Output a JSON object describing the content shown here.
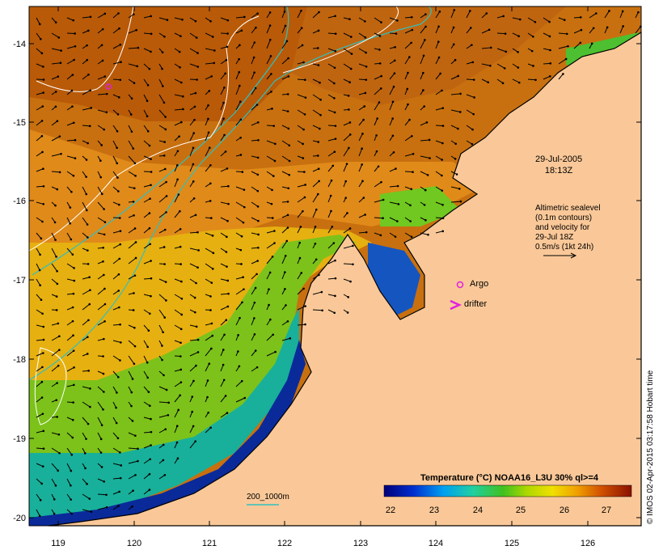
{
  "map": {
    "lat_ticks": [
      "-14",
      "-15",
      "-16",
      "-17",
      "-18",
      "-19",
      "-20"
    ],
    "lon_ticks": [
      "119",
      "120",
      "121",
      "122",
      "123",
      "124",
      "125",
      "126"
    ]
  },
  "annotation": {
    "date": "29-Jul-2005",
    "time": "18:13Z",
    "info_lines": [
      "Altimetric sealevel",
      "(0.1m contours)",
      "and velocity for",
      "29-Jul 18Z",
      "0.5m/s (1kt 24h)"
    ]
  },
  "legend": {
    "argo": "Argo",
    "drifter": "drifter",
    "isobath": "200_1000m",
    "colorbar_title": "Temperature (°C) NOAA16_L3U 30% ql>=4",
    "colorbar_ticks": [
      "22",
      "23",
      "24",
      "25",
      "26",
      "27"
    ]
  },
  "credit": "© IMOS 02-Apr-2015 03:17:58 Hobart time",
  "colors": {
    "land": "#fac898",
    "warm": "#c8640a",
    "mid": "#e8a020",
    "cool": "#22aa33",
    "cold": "#0a2a9a",
    "argo": "#e020e0",
    "isobath": "#30c0c0"
  }
}
